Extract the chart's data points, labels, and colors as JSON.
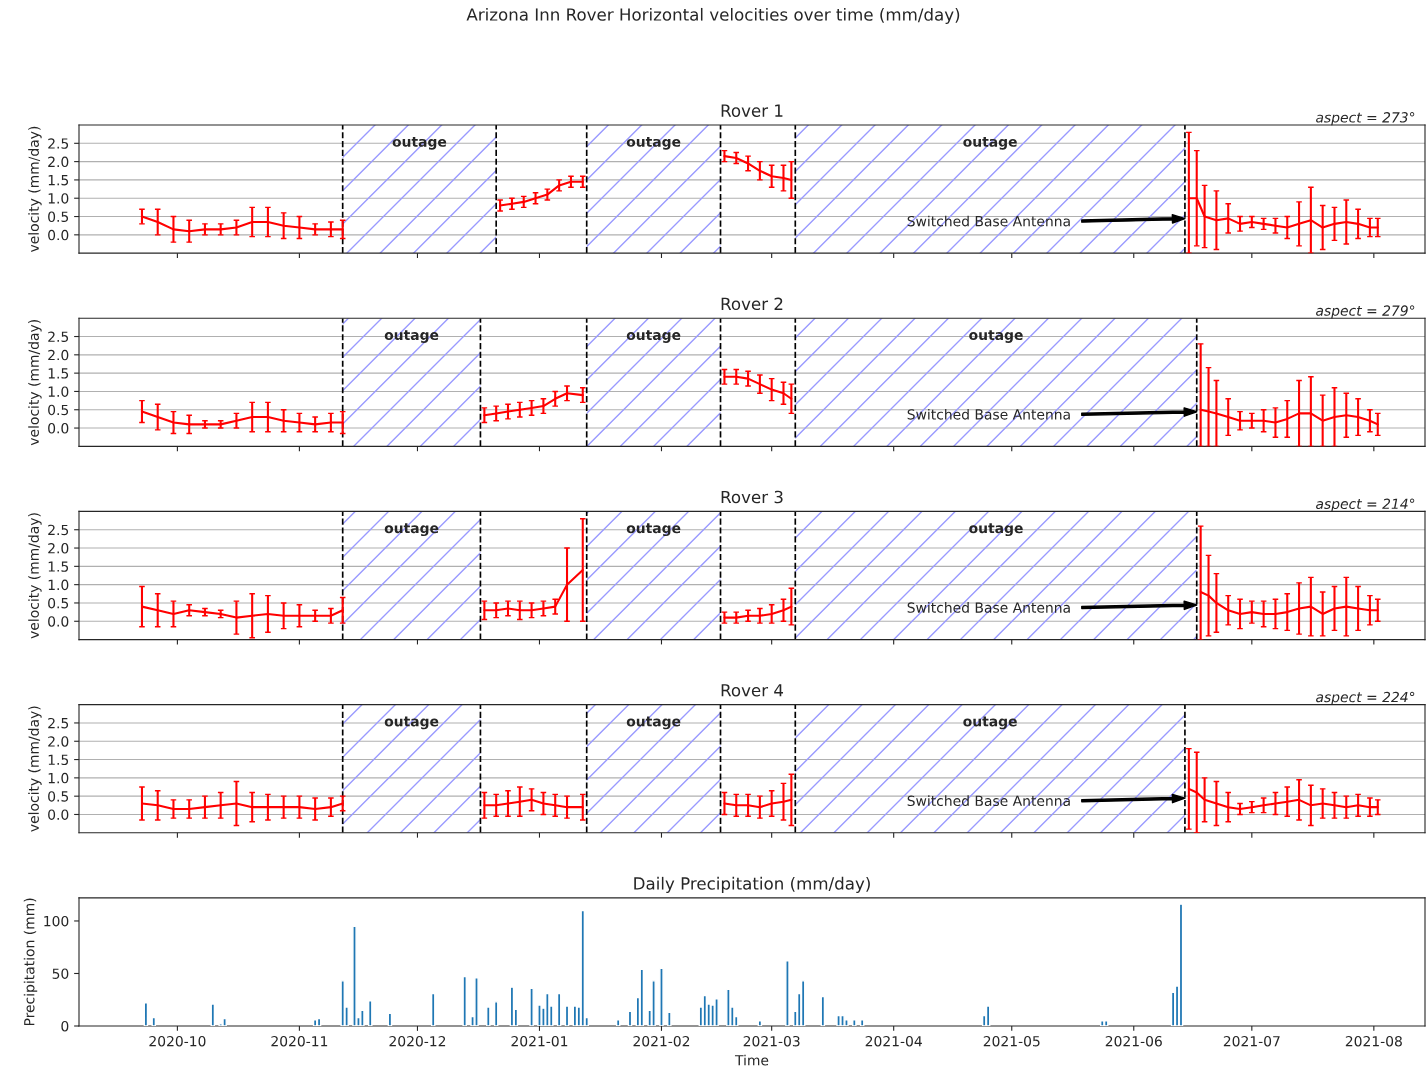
{
  "chart_data": [
    {
      "type": "line",
      "title": "Rover 1",
      "ylabel": "velocity (mm/day)",
      "x": [
        "2020-09-22",
        "2020-09-26",
        "2020-09-30",
        "2020-10-04",
        "2020-10-08",
        "2020-10-12",
        "2020-10-16",
        "2020-10-20",
        "2020-10-24",
        "2020-10-28",
        "2020-11-01",
        "2020-11-05",
        "2020-11-09",
        "2020-11-12",
        "2020-11-25",
        "2020-12-22",
        "2020-12-25",
        "2020-12-28",
        "2020-12-31",
        "2021-01-03",
        "2021-01-06",
        "2021-01-09",
        "2021-01-12",
        "2021-01-25",
        "2021-02-17",
        "2021-02-20",
        "2021-02-23",
        "2021-02-26",
        "2021-03-01",
        "2021-03-04",
        "2021-03-06",
        "2021-04-15",
        "2021-06-15",
        "2021-06-17",
        "2021-06-19",
        "2021-06-22",
        "2021-06-25",
        "2021-06-28",
        "2021-07-01",
        "2021-07-04",
        "2021-07-07",
        "2021-07-10",
        "2021-07-13",
        "2021-07-16",
        "2021-07-19",
        "2021-07-22",
        "2021-07-25",
        "2021-07-28",
        "2021-07-31",
        "2021-08-02"
      ],
      "series": [
        {
          "color": "#ff0000",
          "values": [
            0.5,
            0.35,
            0.15,
            0.1,
            0.15,
            0.15,
            0.2,
            0.35,
            0.35,
            0.25,
            0.2,
            0.15,
            0.15,
            0.15,
            null,
            0.8,
            0.85,
            0.9,
            1.0,
            1.1,
            1.35,
            1.45,
            1.45,
            null,
            2.15,
            2.1,
            1.95,
            1.75,
            1.6,
            1.55,
            1.5,
            null,
            1.0,
            1.0,
            0.5,
            0.4,
            0.45,
            0.3,
            0.35,
            0.3,
            0.25,
            0.2,
            0.3,
            0.4,
            0.2,
            0.3,
            0.35,
            0.3,
            0.2,
            0.2
          ],
          "errors": [
            0.2,
            0.35,
            0.35,
            0.3,
            0.15,
            0.15,
            0.2,
            0.4,
            0.4,
            0.35,
            0.3,
            0.15,
            0.2,
            0.25,
            null,
            0.15,
            0.15,
            0.15,
            0.15,
            0.15,
            0.15,
            0.15,
            0.15,
            null,
            0.15,
            0.15,
            0.2,
            0.25,
            0.3,
            0.35,
            0.5,
            null,
            [
              -0.5,
              2.8
            ],
            1.3,
            0.85,
            0.8,
            0.4,
            0.2,
            0.15,
            0.15,
            0.2,
            0.3,
            0.6,
            0.9,
            0.6,
            0.45,
            0.6,
            0.4,
            0.25,
            0.25
          ]
        }
      ],
      "xlim": [
        "2020-09-06",
        "2021-08-14"
      ],
      "xticks": [
        "2020-10",
        "2020-11",
        "2020-12",
        "2021-01",
        "2021-02",
        "2021-03",
        "2021-04",
        "2021-05",
        "2021-06",
        "2021-07",
        "2021-08"
      ],
      "ylim": [
        -0.5,
        3.0
      ],
      "yticks": [
        {
          "value": 0,
          "label": "0.0"
        },
        {
          "value": 0.5,
          "label": "0.5"
        },
        {
          "value": 1,
          "label": "1.0"
        },
        {
          "value": 1.5,
          "label": "1.5"
        },
        {
          "value": 2,
          "label": "2.0"
        },
        {
          "value": 2.5,
          "label": "2.5"
        }
      ],
      "tick_labels": "y",
      "grid": "y",
      "bands": [
        {
          "axis": "x",
          "from": "2020-11-12",
          "to": "2020-12-21",
          "label": "outage",
          "color": "#9999ff"
        },
        {
          "axis": "x",
          "from": "2021-01-13",
          "to": "2021-02-16",
          "label": "outage",
          "color": "#9999ff"
        },
        {
          "axis": "x",
          "from": "2021-03-07",
          "to": "2021-06-14",
          "label": "outage",
          "color": "#9999ff"
        }
      ],
      "ref_lines": [
        {
          "axis": "x",
          "value": "2020-11-12",
          "color": "#000000",
          "line_style": "dashed"
        },
        {
          "axis": "x",
          "value": "2020-12-21",
          "color": "#000000",
          "line_style": "dashed"
        },
        {
          "axis": "x",
          "value": "2021-01-13",
          "color": "#000000",
          "line_style": "dashed"
        },
        {
          "axis": "x",
          "value": "2021-02-16",
          "color": "#000000",
          "line_style": "dashed"
        },
        {
          "axis": "x",
          "value": "2021-03-07",
          "color": "#000000",
          "line_style": "dashed"
        },
        {
          "axis": "x",
          "value": "2021-06-14",
          "color": "#000000",
          "line_style": "dashed"
        }
      ],
      "annotations": [
        "Arizona Inn Rover Horizontal velocities over time (mm/day)",
        "Switched Base Antenna",
        "aspect = 273°"
      ]
    },
    {
      "type": "line",
      "title": "Rover 2",
      "ylabel": "velocity (mm/day)",
      "x": [
        "2020-09-22",
        "2020-09-26",
        "2020-09-30",
        "2020-10-04",
        "2020-10-08",
        "2020-10-12",
        "2020-10-16",
        "2020-10-20",
        "2020-10-24",
        "2020-10-28",
        "2020-11-01",
        "2020-11-05",
        "2020-11-09",
        "2020-11-12",
        "2020-11-25",
        "2020-12-18",
        "2020-12-21",
        "2020-12-24",
        "2020-12-27",
        "2020-12-30",
        "2021-01-02",
        "2021-01-05",
        "2021-01-08",
        "2021-01-12",
        "2021-01-25",
        "2021-02-17",
        "2021-02-20",
        "2021-02-23",
        "2021-02-26",
        "2021-03-01",
        "2021-03-04",
        "2021-03-06",
        "2021-04-15",
        "2021-06-18",
        "2021-06-20",
        "2021-06-22",
        "2021-06-25",
        "2021-06-28",
        "2021-07-01",
        "2021-07-04",
        "2021-07-07",
        "2021-07-10",
        "2021-07-13",
        "2021-07-16",
        "2021-07-19",
        "2021-07-22",
        "2021-07-25",
        "2021-07-28",
        "2021-07-31",
        "2021-08-02"
      ],
      "series": [
        {
          "color": "#ff0000",
          "values": [
            0.45,
            0.3,
            0.15,
            0.1,
            0.1,
            0.1,
            0.2,
            0.3,
            0.3,
            0.2,
            0.15,
            0.1,
            0.15,
            0.15,
            null,
            0.35,
            0.4,
            0.45,
            0.5,
            0.55,
            0.6,
            0.8,
            0.95,
            0.9,
            null,
            1.4,
            1.4,
            1.35,
            1.2,
            1.05,
            0.95,
            0.8,
            null,
            0.5,
            0.45,
            0.4,
            0.3,
            0.2,
            0.2,
            0.2,
            0.15,
            0.25,
            0.4,
            0.4,
            0.2,
            0.3,
            0.35,
            0.3,
            0.2,
            0.1
          ],
          "errors": [
            0.3,
            0.35,
            0.3,
            0.25,
            0.1,
            0.1,
            0.2,
            0.4,
            0.4,
            0.3,
            0.25,
            0.2,
            0.25,
            0.3,
            null,
            0.2,
            0.2,
            0.2,
            0.2,
            0.2,
            0.2,
            0.2,
            0.2,
            0.2,
            null,
            0.2,
            0.2,
            0.2,
            0.25,
            0.3,
            0.3,
            0.4,
            null,
            [
              -0.5,
              2.3
            ],
            [
              -0.5,
              1.65
            ],
            0.9,
            0.5,
            0.25,
            0.2,
            0.3,
            0.4,
            0.5,
            0.9,
            [
              -0.5,
              1.4
            ],
            0.7,
            0.8,
            0.6,
            0.5,
            0.3,
            0.3
          ]
        }
      ],
      "xlim": [
        "2020-09-06",
        "2021-08-14"
      ],
      "xticks": [
        "2020-10",
        "2020-11",
        "2020-12",
        "2021-01",
        "2021-02",
        "2021-03",
        "2021-04",
        "2021-05",
        "2021-06",
        "2021-07",
        "2021-08"
      ],
      "ylim": [
        -0.5,
        3.0
      ],
      "yticks": [
        {
          "value": 0,
          "label": "0.0"
        },
        {
          "value": 0.5,
          "label": "0.5"
        },
        {
          "value": 1,
          "label": "1.0"
        },
        {
          "value": 1.5,
          "label": "1.5"
        },
        {
          "value": 2,
          "label": "2.0"
        },
        {
          "value": 2.5,
          "label": "2.5"
        }
      ],
      "tick_labels": "y",
      "grid": "y",
      "bands": [
        {
          "axis": "x",
          "from": "2020-11-12",
          "to": "2020-12-17",
          "label": "outage",
          "color": "#9999ff"
        },
        {
          "axis": "x",
          "from": "2021-01-13",
          "to": "2021-02-16",
          "label": "outage",
          "color": "#9999ff"
        },
        {
          "axis": "x",
          "from": "2021-03-07",
          "to": "2021-06-17",
          "label": "outage",
          "color": "#9999ff"
        }
      ],
      "ref_lines": [
        {
          "axis": "x",
          "value": "2020-11-12",
          "color": "#000000",
          "line_style": "dashed"
        },
        {
          "axis": "x",
          "value": "2020-12-17",
          "color": "#000000",
          "line_style": "dashed"
        },
        {
          "axis": "x",
          "value": "2021-01-13",
          "color": "#000000",
          "line_style": "dashed"
        },
        {
          "axis": "x",
          "value": "2021-02-16",
          "color": "#000000",
          "line_style": "dashed"
        },
        {
          "axis": "x",
          "value": "2021-03-07",
          "color": "#000000",
          "line_style": "dashed"
        },
        {
          "axis": "x",
          "value": "2021-06-17",
          "color": "#000000",
          "line_style": "dashed"
        }
      ],
      "annotations": [
        "Switched Base Antenna",
        "aspect = 279°"
      ]
    },
    {
      "type": "line",
      "title": "Rover 3",
      "ylabel": "velocity (mm/day)",
      "x": [
        "2020-09-22",
        "2020-09-26",
        "2020-09-30",
        "2020-10-04",
        "2020-10-08",
        "2020-10-12",
        "2020-10-16",
        "2020-10-20",
        "2020-10-24",
        "2020-10-28",
        "2020-11-01",
        "2020-11-05",
        "2020-11-09",
        "2020-11-12",
        "2020-11-25",
        "2020-12-18",
        "2020-12-21",
        "2020-12-24",
        "2020-12-27",
        "2020-12-30",
        "2021-01-02",
        "2021-01-05",
        "2021-01-08",
        "2021-01-12",
        "2021-01-25",
        "2021-02-17",
        "2021-02-20",
        "2021-02-23",
        "2021-02-26",
        "2021-03-01",
        "2021-03-04",
        "2021-03-06",
        "2021-04-15",
        "2021-06-18",
        "2021-06-20",
        "2021-06-22",
        "2021-06-25",
        "2021-06-28",
        "2021-07-01",
        "2021-07-04",
        "2021-07-07",
        "2021-07-10",
        "2021-07-13",
        "2021-07-16",
        "2021-07-19",
        "2021-07-22",
        "2021-07-25",
        "2021-07-28",
        "2021-07-31",
        "2021-08-02"
      ],
      "series": [
        {
          "color": "#ff0000",
          "values": [
            0.4,
            0.3,
            0.2,
            0.3,
            0.25,
            0.2,
            0.1,
            0.15,
            0.2,
            0.15,
            0.15,
            0.15,
            0.15,
            0.3,
            null,
            0.3,
            0.3,
            0.35,
            0.3,
            0.3,
            0.35,
            0.4,
            1.0,
            1.4,
            null,
            0.1,
            0.1,
            0.15,
            0.15,
            0.2,
            0.3,
            0.4,
            null,
            0.8,
            0.7,
            0.5,
            0.3,
            0.2,
            0.25,
            0.2,
            0.2,
            0.25,
            0.35,
            0.4,
            0.2,
            0.35,
            0.4,
            0.35,
            0.3,
            0.3
          ],
          "errors": [
            0.55,
            0.45,
            0.35,
            0.15,
            0.1,
            0.1,
            0.45,
            0.6,
            0.5,
            0.35,
            0.3,
            0.15,
            0.2,
            0.35,
            null,
            0.25,
            0.2,
            0.2,
            0.25,
            0.2,
            0.2,
            0.2,
            1.0,
            1.4,
            null,
            0.15,
            0.15,
            0.15,
            0.2,
            0.25,
            0.3,
            0.5,
            null,
            [
              -0.5,
              2.6
            ],
            1.1,
            0.8,
            0.4,
            0.4,
            0.3,
            0.35,
            0.4,
            0.5,
            0.7,
            0.8,
            0.6,
            0.6,
            0.8,
            0.6,
            0.4,
            0.3
          ]
        }
      ],
      "xlim": [
        "2020-09-06",
        "2021-08-14"
      ],
      "xticks": [
        "2020-10",
        "2020-11",
        "2020-12",
        "2021-01",
        "2021-02",
        "2021-03",
        "2021-04",
        "2021-05",
        "2021-06",
        "2021-07",
        "2021-08"
      ],
      "ylim": [
        -0.5,
        3.0
      ],
      "yticks": [
        {
          "value": 0,
          "label": "0.0"
        },
        {
          "value": 0.5,
          "label": "0.5"
        },
        {
          "value": 1,
          "label": "1.0"
        },
        {
          "value": 1.5,
          "label": "1.5"
        },
        {
          "value": 2,
          "label": "2.0"
        },
        {
          "value": 2.5,
          "label": "2.5"
        }
      ],
      "tick_labels": "y",
      "grid": "y",
      "bands": [
        {
          "axis": "x",
          "from": "2020-11-12",
          "to": "2020-12-17",
          "label": "outage",
          "color": "#9999ff"
        },
        {
          "axis": "x",
          "from": "2021-01-13",
          "to": "2021-02-16",
          "label": "outage",
          "color": "#9999ff"
        },
        {
          "axis": "x",
          "from": "2021-03-07",
          "to": "2021-06-17",
          "label": "outage",
          "color": "#9999ff"
        }
      ],
      "ref_lines": [
        {
          "axis": "x",
          "value": "2020-11-12",
          "color": "#000000",
          "line_style": "dashed"
        },
        {
          "axis": "x",
          "value": "2020-12-17",
          "color": "#000000",
          "line_style": "dashed"
        },
        {
          "axis": "x",
          "value": "2021-01-13",
          "color": "#000000",
          "line_style": "dashed"
        },
        {
          "axis": "x",
          "value": "2021-02-16",
          "color": "#000000",
          "line_style": "dashed"
        },
        {
          "axis": "x",
          "value": "2021-03-07",
          "color": "#000000",
          "line_style": "dashed"
        },
        {
          "axis": "x",
          "value": "2021-06-17",
          "color": "#000000",
          "line_style": "dashed"
        }
      ],
      "annotations": [
        "Switched Base Antenna",
        "aspect = 214°"
      ]
    },
    {
      "type": "line",
      "title": "Rover 4",
      "ylabel": "velocity (mm/day)",
      "x": [
        "2020-09-22",
        "2020-09-26",
        "2020-09-30",
        "2020-10-04",
        "2020-10-08",
        "2020-10-12",
        "2020-10-16",
        "2020-10-20",
        "2020-10-24",
        "2020-10-28",
        "2020-11-01",
        "2020-11-05",
        "2020-11-09",
        "2020-11-12",
        "2020-11-25",
        "2020-12-18",
        "2020-12-21",
        "2020-12-24",
        "2020-12-27",
        "2020-12-30",
        "2021-01-02",
        "2021-01-05",
        "2021-01-08",
        "2021-01-12",
        "2021-01-25",
        "2021-02-17",
        "2021-02-20",
        "2021-02-23",
        "2021-02-26",
        "2021-03-01",
        "2021-03-04",
        "2021-03-06",
        "2021-04-15",
        "2021-06-15",
        "2021-06-17",
        "2021-06-19",
        "2021-06-22",
        "2021-06-25",
        "2021-06-28",
        "2021-07-01",
        "2021-07-04",
        "2021-07-07",
        "2021-07-10",
        "2021-07-13",
        "2021-07-16",
        "2021-07-19",
        "2021-07-22",
        "2021-07-25",
        "2021-07-28",
        "2021-07-31",
        "2021-08-02"
      ],
      "series": [
        {
          "color": "#ff0000",
          "values": [
            0.3,
            0.25,
            0.15,
            0.15,
            0.2,
            0.25,
            0.3,
            0.2,
            0.2,
            0.2,
            0.2,
            0.15,
            0.2,
            0.3,
            null,
            0.25,
            0.25,
            0.3,
            0.35,
            0.4,
            0.3,
            0.25,
            0.2,
            0.2,
            null,
            0.3,
            0.25,
            0.25,
            0.2,
            0.3,
            0.35,
            0.4,
            null,
            0.7,
            0.6,
            0.4,
            0.3,
            0.2,
            0.15,
            0.2,
            0.25,
            0.3,
            0.35,
            0.4,
            0.25,
            0.3,
            0.25,
            0.2,
            0.25,
            0.2,
            0.2
          ],
          "errors": [
            0.45,
            0.4,
            0.25,
            0.25,
            0.3,
            0.35,
            0.6,
            0.4,
            0.35,
            0.3,
            0.3,
            0.3,
            0.25,
            0.2,
            null,
            0.35,
            0.3,
            0.35,
            0.4,
            0.3,
            0.3,
            0.3,
            0.3,
            0.35,
            null,
            0.3,
            0.3,
            0.3,
            0.3,
            0.35,
            0.5,
            0.7,
            null,
            1.1,
            1.1,
            0.6,
            0.6,
            0.4,
            0.15,
            0.15,
            0.2,
            0.3,
            0.4,
            0.55,
            0.55,
            0.4,
            0.35,
            0.3,
            0.3,
            0.25,
            0.2
          ]
        }
      ],
      "xlim": [
        "2020-09-06",
        "2021-08-14"
      ],
      "xticks": [
        "2020-10",
        "2020-11",
        "2020-12",
        "2021-01",
        "2021-02",
        "2021-03",
        "2021-04",
        "2021-05",
        "2021-06",
        "2021-07",
        "2021-08"
      ],
      "ylim": [
        -0.5,
        3.0
      ],
      "yticks": [
        {
          "value": 0,
          "label": "0.0"
        },
        {
          "value": 0.5,
          "label": "0.5"
        },
        {
          "value": 1,
          "label": "1.0"
        },
        {
          "value": 1.5,
          "label": "1.5"
        },
        {
          "value": 2,
          "label": "2.0"
        },
        {
          "value": 2.5,
          "label": "2.5"
        }
      ],
      "tick_labels": "y",
      "grid": "y",
      "bands": [
        {
          "axis": "x",
          "from": "2020-11-12",
          "to": "2020-12-17",
          "label": "outage",
          "color": "#9999ff"
        },
        {
          "axis": "x",
          "from": "2021-01-13",
          "to": "2021-02-16",
          "label": "outage",
          "color": "#9999ff"
        },
        {
          "axis": "x",
          "from": "2021-03-07",
          "to": "2021-06-14",
          "label": "outage",
          "color": "#9999ff"
        }
      ],
      "ref_lines": [
        {
          "axis": "x",
          "value": "2020-11-12",
          "color": "#000000",
          "line_style": "dashed"
        },
        {
          "axis": "x",
          "value": "2020-12-17",
          "color": "#000000",
          "line_style": "dashed"
        },
        {
          "axis": "x",
          "value": "2021-01-13",
          "color": "#000000",
          "line_style": "dashed"
        },
        {
          "axis": "x",
          "value": "2021-02-16",
          "color": "#000000",
          "line_style": "dashed"
        },
        {
          "axis": "x",
          "value": "2021-03-07",
          "color": "#000000",
          "line_style": "dashed"
        },
        {
          "axis": "x",
          "value": "2021-06-14",
          "color": "#000000",
          "line_style": "dashed"
        }
      ],
      "annotations": [
        "Switched Base Antenna",
        "aspect = 224°"
      ]
    },
    {
      "type": "bar",
      "title": "Daily Precipitation (mm/day)",
      "xlabel": "Time",
      "ylabel": "Precipitation (mm)",
      "color": "#1f77b4",
      "x": [
        "2020-09-23",
        "2020-09-25",
        "2020-10-10",
        "2020-10-12",
        "2020-10-13",
        "2020-11-05",
        "2020-11-06",
        "2020-11-12",
        "2020-11-13",
        "2020-11-15",
        "2020-11-16",
        "2020-11-17",
        "2020-11-19",
        "2020-11-24",
        "2020-12-05",
        "2020-12-13",
        "2020-12-15",
        "2020-12-16",
        "2020-12-19",
        "2020-12-21",
        "2020-12-25",
        "2020-12-26",
        "2020-12-30",
        "2021-01-01",
        "2021-01-02",
        "2021-01-03",
        "2021-01-04",
        "2021-01-06",
        "2021-01-08",
        "2021-01-10",
        "2021-01-11",
        "2021-01-12",
        "2021-01-13",
        "2021-01-21",
        "2021-01-24",
        "2021-01-26",
        "2021-01-27",
        "2021-01-29",
        "2021-01-30",
        "2021-02-01",
        "2021-02-03",
        "2021-02-11",
        "2021-02-12",
        "2021-02-13",
        "2021-02-14",
        "2021-02-15",
        "2021-02-18",
        "2021-02-19",
        "2021-02-20",
        "2021-02-26",
        "2021-03-05",
        "2021-03-07",
        "2021-03-08",
        "2021-03-09",
        "2021-03-14",
        "2021-03-18",
        "2021-03-19",
        "2021-03-20",
        "2021-03-22",
        "2021-03-24",
        "2021-04-24",
        "2021-04-25",
        "2021-05-24",
        "2021-05-25",
        "2021-06-11",
        "2021-06-12",
        "2021-06-13"
      ],
      "values": [
        22,
        8,
        21,
        2,
        7,
        6,
        7,
        43,
        18,
        95,
        8,
        15,
        24,
        12,
        31,
        47,
        9,
        46,
        18,
        23,
        37,
        16,
        36,
        20,
        17,
        31,
        19,
        31,
        19,
        19,
        18,
        110,
        8,
        6,
        14,
        27,
        54,
        15,
        43,
        55,
        13,
        18,
        29,
        21,
        20,
        26,
        35,
        18,
        9,
        5,
        62,
        14,
        31,
        43,
        28,
        10,
        10,
        6,
        6,
        6,
        10,
        19,
        5,
        5,
        32,
        38,
        116
      ],
      "xlim": [
        "2020-09-06",
        "2021-08-14"
      ],
      "xticks": [
        "2020-10",
        "2020-11",
        "2020-12",
        "2021-01",
        "2021-02",
        "2021-03",
        "2021-04",
        "2021-05",
        "2021-06",
        "2021-07",
        "2021-08"
      ],
      "ylim": [
        0,
        122
      ],
      "yticks": [
        0,
        50,
        100
      ]
    }
  ]
}
